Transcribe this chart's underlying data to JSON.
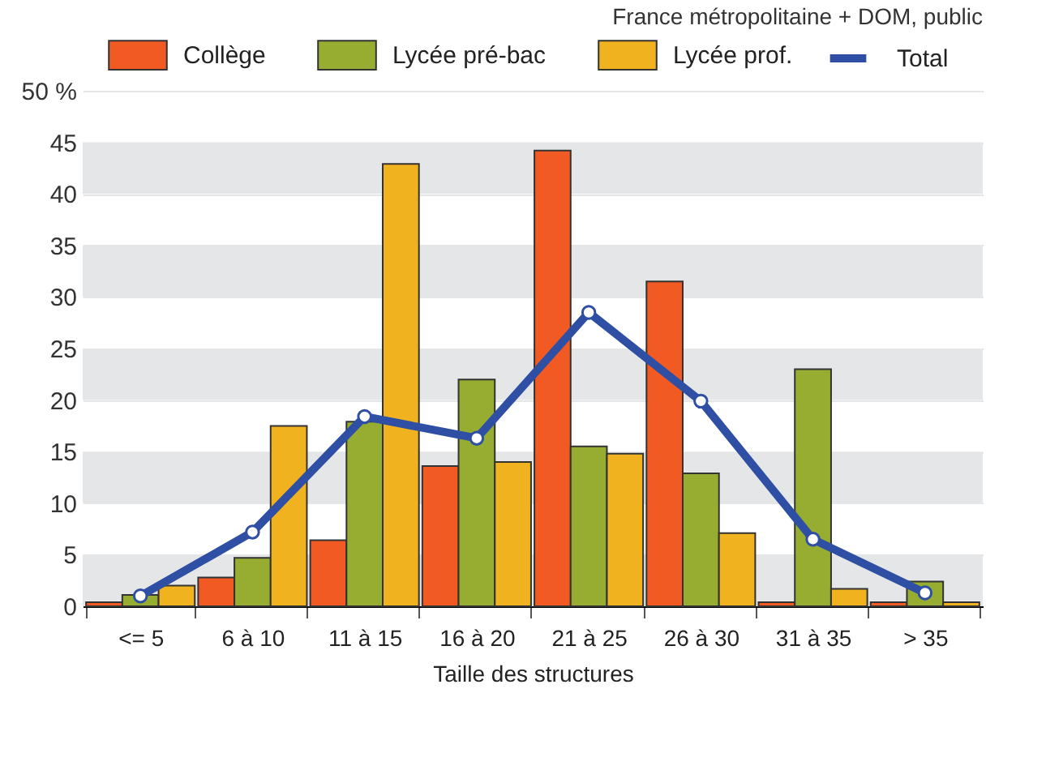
{
  "chart_data": {
    "type": "bar",
    "subtitle": "France métropolitaine + DOM, public",
    "xlabel": "Taille des structures",
    "categories": [
      "<= 5",
      "6 à 10",
      "11 à 15",
      "16 à 20",
      "21 à 25",
      "26 à 30",
      "31 à 35",
      "> 35"
    ],
    "series": [
      {
        "name": "Collège",
        "color": "#f15a22",
        "values": [
          0.4,
          2.8,
          6.4,
          13.6,
          44.2,
          31.5,
          0.4,
          0.4
        ]
      },
      {
        "name": "Lycée pré-bac",
        "color": "#97ad32",
        "values": [
          1.1,
          4.7,
          17.9,
          22.0,
          15.5,
          12.9,
          23.0,
          2.4
        ]
      },
      {
        "name": "Lycée prof.",
        "color": "#f0b21e",
        "values": [
          2.0,
          17.5,
          42.9,
          14.0,
          14.8,
          7.1,
          1.7,
          0.4
        ]
      },
      {
        "name": "Total",
        "type": "line",
        "color": "#2e4fa3",
        "marker": "circle",
        "values": [
          1.0,
          7.2,
          18.4,
          16.3,
          28.5,
          19.9,
          6.5,
          1.3
        ]
      }
    ],
    "ylim": [
      0,
      50
    ],
    "yticks": [
      0,
      5,
      10,
      15,
      20,
      25,
      30,
      35,
      40,
      45,
      {
        "value": 50,
        "label": "50 %"
      }
    ],
    "grid": "y",
    "legend": "top"
  }
}
